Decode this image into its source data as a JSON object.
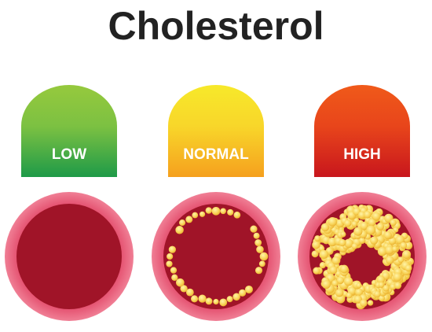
{
  "header": {
    "title": "Cholesterol"
  },
  "levels": [
    {
      "label": "LOW"
    },
    {
      "label": "NORMAL"
    },
    {
      "label": "HIGH"
    }
  ]
}
